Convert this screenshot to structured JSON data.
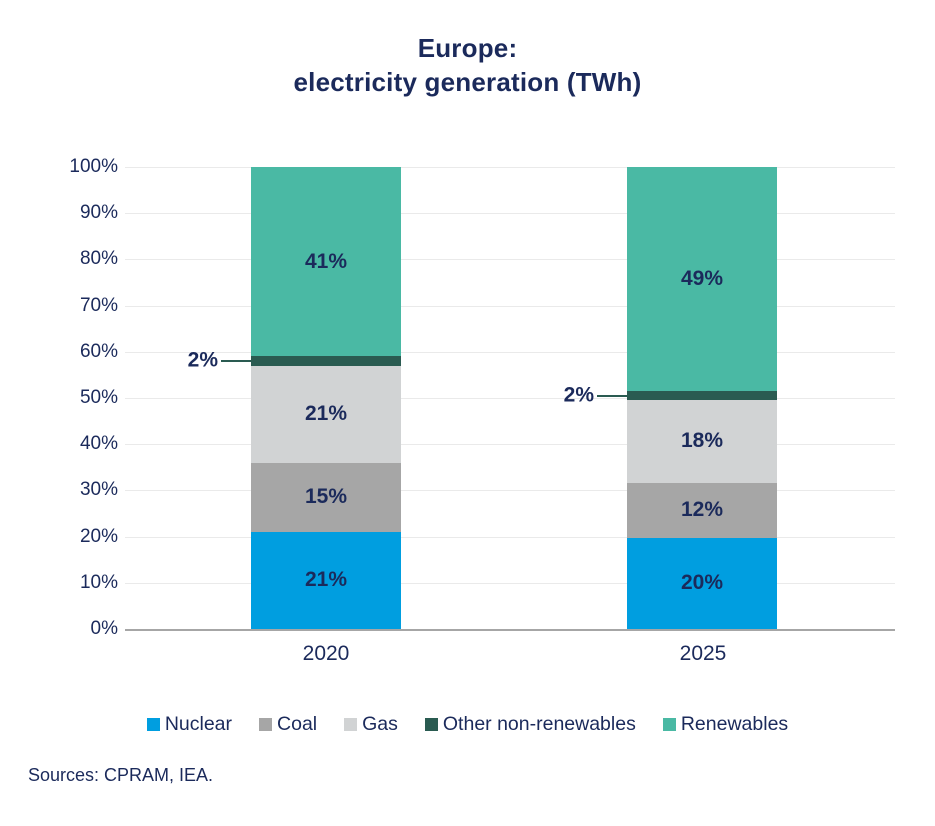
{
  "title": {
    "line1": "Europe:",
    "line2": "electricity generation (TWh)"
  },
  "source": "Sources: CPRAM, IEA.",
  "colors": {
    "text_navy": "#1B2A5B",
    "gridline": "#EAEAEA",
    "axis_line": "#A6A6A6",
    "leader_line": "#2A5B51"
  },
  "chart_data": {
    "type": "bar",
    "stacked": true,
    "percent_stacked": true,
    "title": "Europe: electricity generation (TWh)",
    "categories": [
      "2020",
      "2025"
    ],
    "series": [
      {
        "name": "Nuclear",
        "color": "#009EE0",
        "values": [
          21,
          20
        ]
      },
      {
        "name": "Coal",
        "color": "#A6A6A6",
        "values": [
          15,
          12
        ]
      },
      {
        "name": "Gas",
        "color": "#D1D3D4",
        "values": [
          21,
          18
        ]
      },
      {
        "name": "Other non-renewables",
        "color": "#2A5B51",
        "values": [
          2,
          2
        ]
      },
      {
        "name": "Renewables",
        "color": "#4AB9A4",
        "values": [
          41,
          49
        ]
      }
    ],
    "value_suffix": "%",
    "y_ticks": [
      "100%",
      "90%",
      "80%",
      "70%",
      "60%",
      "50%",
      "40%",
      "30%",
      "20%",
      "10%",
      "0%"
    ],
    "ylim": [
      0,
      100
    ],
    "grid": true,
    "legend_position": "bottom",
    "xlabel": "",
    "ylabel": ""
  }
}
